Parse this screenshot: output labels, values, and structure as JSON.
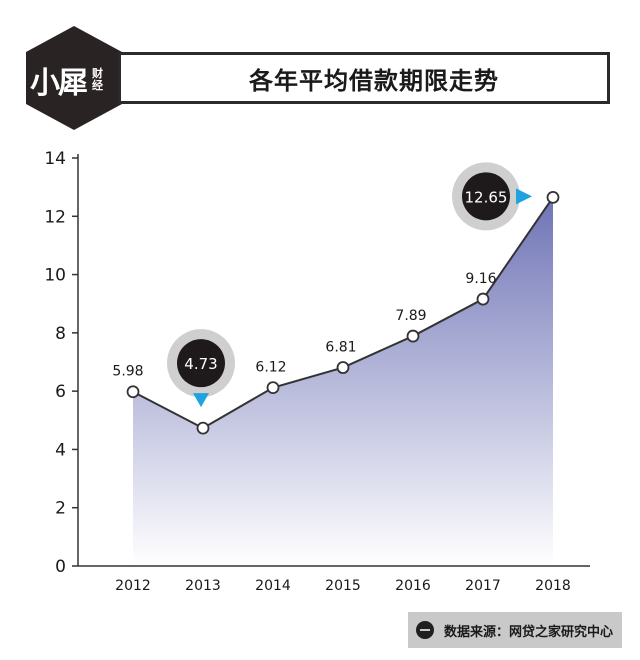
{
  "header": {
    "title": "各年平均借款期限走势",
    "logo_main": "小犀",
    "logo_small": "财经"
  },
  "footer": {
    "source": "数据来源：网贷之家研究中心"
  },
  "colors": {
    "area_top": "#6f74b6",
    "area_bottom": "#ffffff",
    "line": "#333333",
    "bubble_dark": "#1e1a1b",
    "bubble_ring": "#cfcfcf",
    "pointer": "#1fa3e0"
  },
  "chart_data": {
    "type": "area",
    "title": "各年平均借款期限走势",
    "xlabel": "",
    "ylabel": "",
    "categories": [
      "2012",
      "2013",
      "2014",
      "2015",
      "2016",
      "2017",
      "2018"
    ],
    "values": [
      5.98,
      4.73,
      6.12,
      6.81,
      7.89,
      9.16,
      12.65
    ],
    "ylim": [
      0,
      14
    ],
    "yticks": [
      0,
      2,
      4,
      6,
      8,
      10,
      12,
      14
    ],
    "highlighted": [
      "2013",
      "2018"
    ],
    "grid": false,
    "legend": "none"
  }
}
